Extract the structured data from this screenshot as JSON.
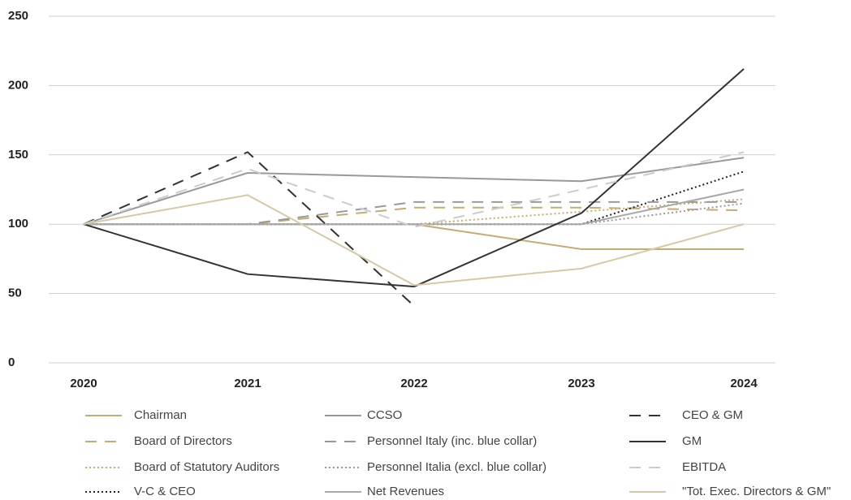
{
  "chart_data": {
    "type": "line",
    "categories": [
      "2020",
      "2021",
      "2022",
      "2023",
      "2024"
    ],
    "ylim": [
      0,
      250
    ],
    "yticks": [
      0,
      50,
      100,
      150,
      200,
      250
    ],
    "grid": true,
    "series": [
      {
        "name": "Chairman",
        "color": "#c8ab6e",
        "dash": "solid",
        "values": [
          100,
          100,
          100,
          82,
          82
        ]
      },
      {
        "name": "Board of Directors",
        "color": "#c8ab6e",
        "dash": "dashed",
        "values": [
          100,
          100,
          112,
          112,
          110
        ]
      },
      {
        "name": "Board of Statutory Auditors",
        "color": "#c8ab6e",
        "dash": "dotted",
        "values": [
          100,
          100,
          100,
          109,
          118
        ]
      },
      {
        "name": "V-C & CEO",
        "color": "#222222",
        "dash": "dotted",
        "values": [
          100,
          100,
          100,
          100,
          138
        ]
      },
      {
        "name": "CCSO",
        "color": "#999999",
        "dash": "solid",
        "values": [
          100,
          137,
          134,
          131,
          148
        ]
      },
      {
        "name": "Personnel Italy (inc. blue collar)",
        "color": "#999999",
        "dash": "dashed",
        "values": [
          100,
          100,
          116,
          116,
          116
        ]
      },
      {
        "name": "Personnel Italia (excl. blue collar)",
        "color": "#999999",
        "dash": "dotted",
        "values": [
          100,
          100,
          100,
          100,
          115
        ]
      },
      {
        "name": "Net Revenues",
        "color": "#a8a8a8",
        "dash": "solid",
        "values": [
          100,
          100,
          100,
          100,
          125
        ]
      },
      {
        "name": "CEO & GM",
        "color": "#333333",
        "dash": "dashed",
        "values": [
          100,
          152,
          41,
          null,
          null
        ]
      },
      {
        "name": "GM",
        "color": "#333333",
        "dash": "solid",
        "values": [
          100,
          64,
          55,
          108,
          212
        ]
      },
      {
        "name": "EBITDA",
        "color": "#cccccc",
        "dash": "dashed",
        "values": [
          100,
          140,
          98,
          125,
          152
        ]
      },
      {
        "name": "\"Tot. Exec. Directors & GM\"",
        "color": "#d6c9a8",
        "dash": "solid",
        "values": [
          100,
          121,
          56,
          68,
          100
        ]
      }
    ]
  }
}
